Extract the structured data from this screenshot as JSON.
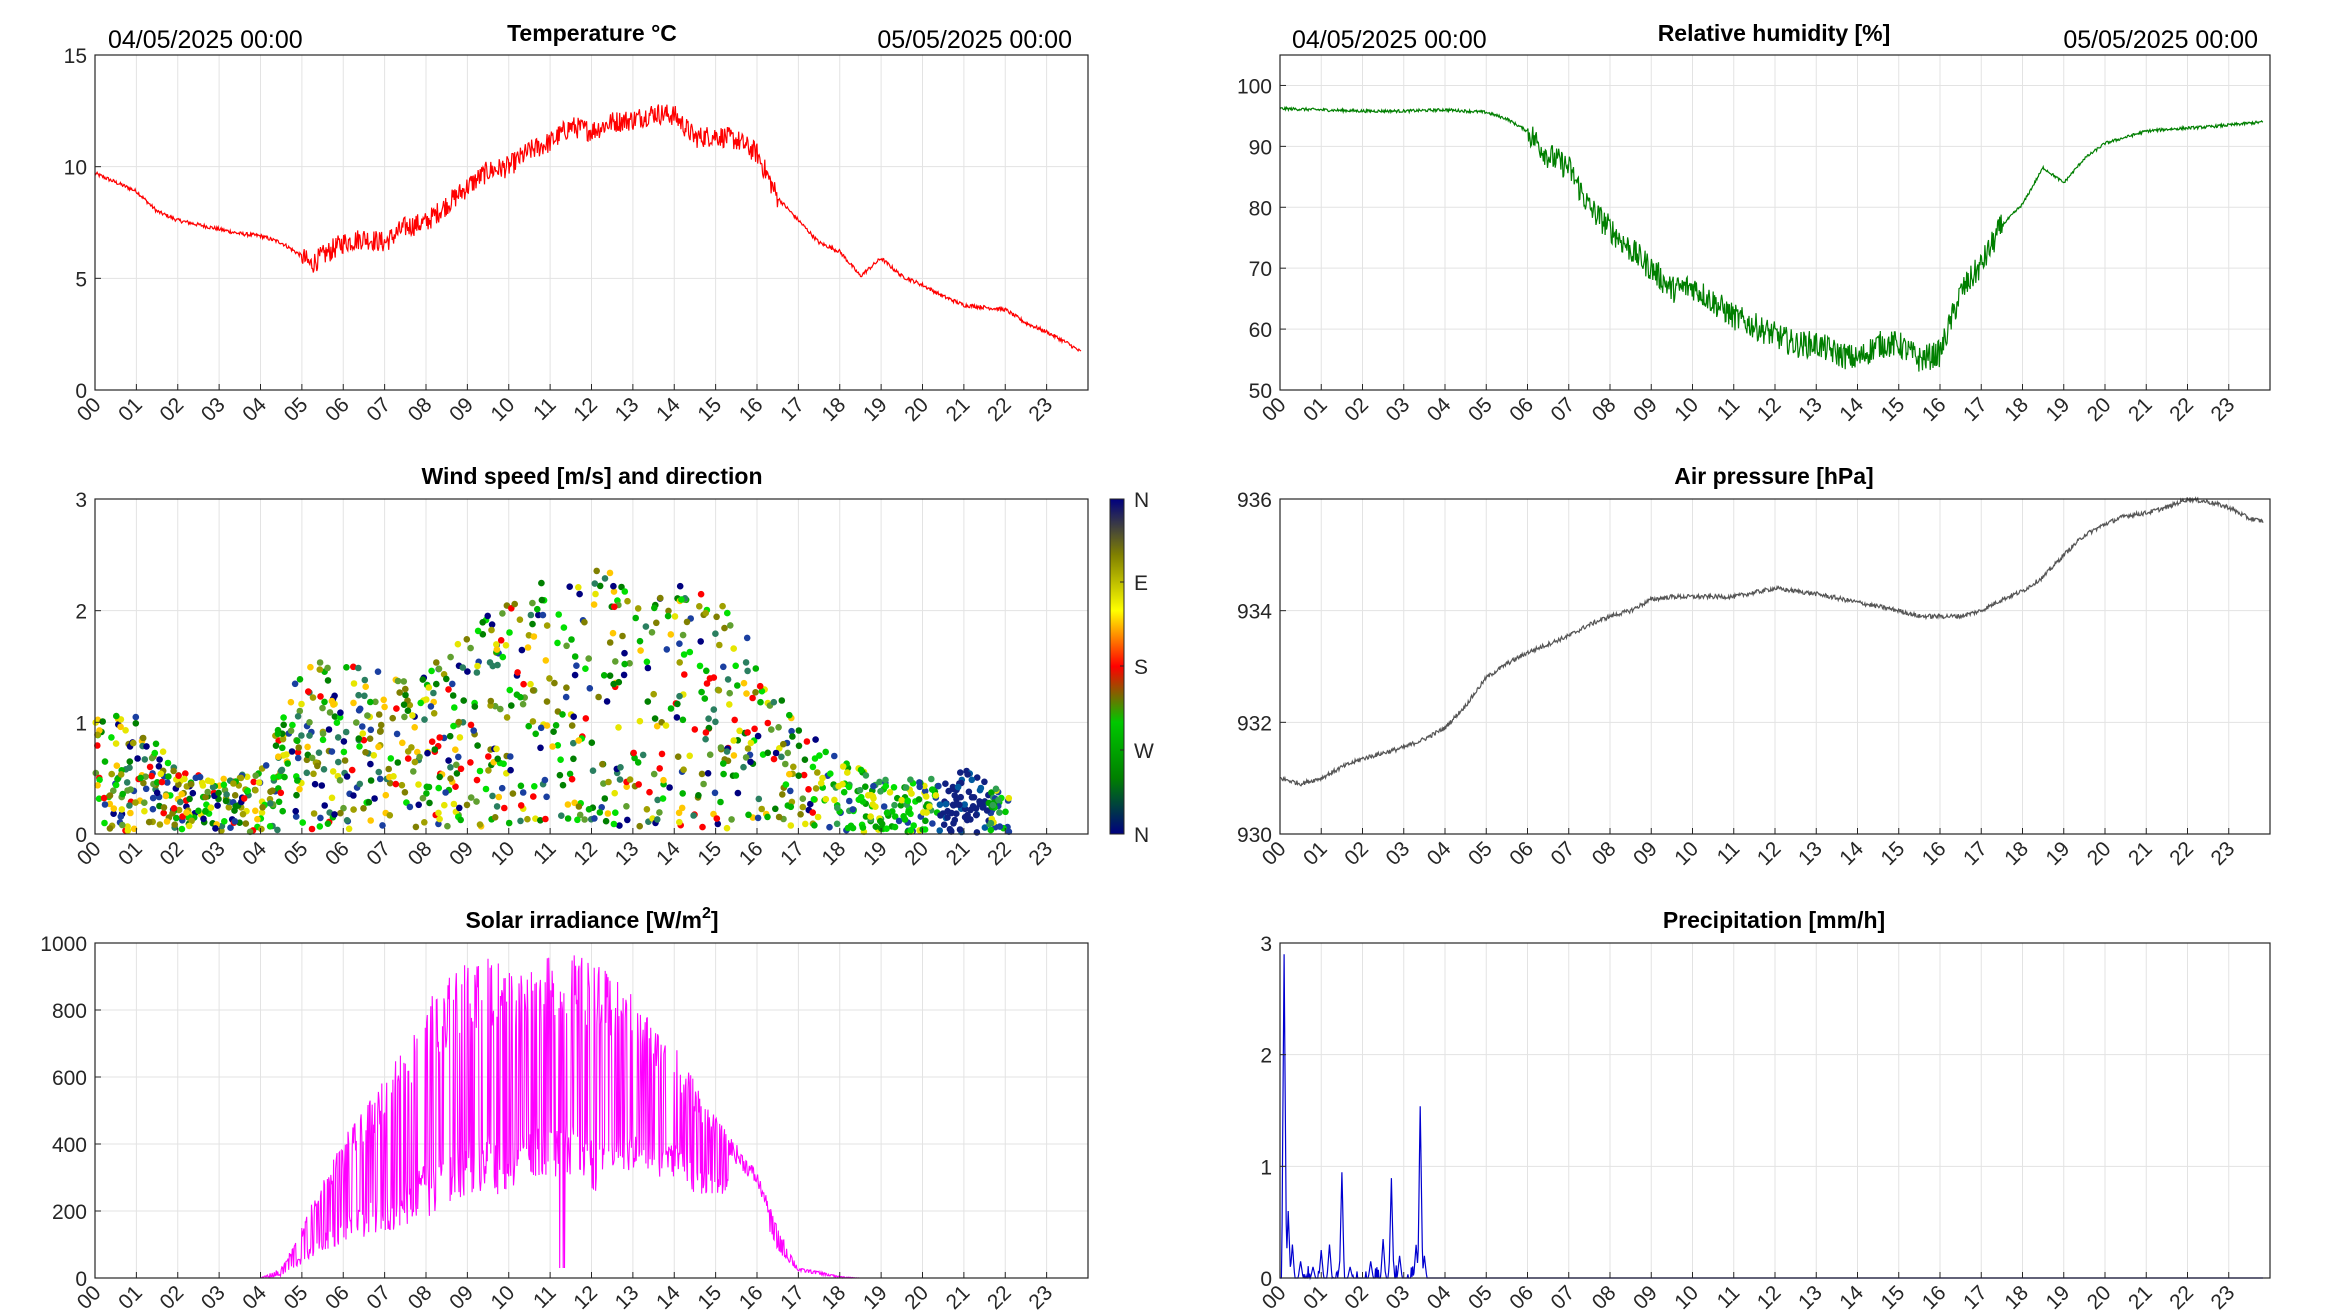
{
  "date_start": "04/05/2025 00:00",
  "date_end": "05/05/2025 00:00",
  "hour_labels": [
    "00",
    "01",
    "02",
    "03",
    "04",
    "05",
    "06",
    "07",
    "08",
    "09",
    "10",
    "11",
    "12",
    "13",
    "14",
    "15",
    "16",
    "17",
    "18",
    "19",
    "20",
    "21",
    "22",
    "23"
  ],
  "chart_data": [
    {
      "id": "temperature",
      "type": "line",
      "title": "Temperature °C",
      "color": "#ff0000",
      "xlabel": "",
      "ylabel": "",
      "xlim": [
        0,
        23.83
      ],
      "ylim": [
        0,
        15
      ],
      "yticks": [
        0,
        5,
        10,
        15
      ],
      "grid": true,
      "x": [
        0,
        0.5,
        1,
        1.5,
        2,
        2.5,
        3,
        3.5,
        4,
        4.5,
        5,
        5.2,
        5.5,
        6,
        6.5,
        7,
        7.5,
        8,
        8.5,
        9,
        9.5,
        10,
        10.5,
        11,
        11.5,
        12,
        12.5,
        13,
        13.5,
        14,
        14.5,
        15,
        15.5,
        16,
        16.5,
        17,
        17.5,
        18,
        18.5,
        19,
        19.5,
        20,
        20.5,
        21,
        21.5,
        22,
        22.5,
        23,
        23.5,
        23.83
      ],
      "y": [
        9.7,
        9.3,
        8.9,
        8.0,
        7.6,
        7.4,
        7.2,
        7.0,
        6.9,
        6.6,
        6.0,
        5.6,
        6.0,
        6.6,
        6.8,
        6.6,
        7.3,
        7.5,
        8.3,
        9.1,
        9.8,
        10.0,
        10.7,
        11.1,
        11.8,
        11.6,
        12.0,
        12.1,
        12.4,
        12.3,
        11.3,
        11.4,
        11.2,
        10.6,
        8.6,
        7.6,
        6.6,
        6.2,
        5.1,
        5.9,
        5.1,
        4.7,
        4.2,
        3.8,
        3.7,
        3.6,
        3.0,
        2.6,
        2.1,
        1.7
      ],
      "noise": 0.35
    },
    {
      "id": "humidity",
      "type": "line",
      "title": "Relative humidity [%]",
      "color": "#007f00",
      "xlabel": "",
      "ylabel": "",
      "xlim": [
        0,
        23.83
      ],
      "ylim": [
        50,
        105
      ],
      "yticks": [
        50,
        60,
        70,
        80,
        90,
        100
      ],
      "grid": true,
      "x": [
        0,
        1,
        2,
        3,
        4,
        5,
        5.5,
        6,
        6.5,
        7,
        7.5,
        8,
        8.5,
        9,
        9.5,
        10,
        10.5,
        11,
        11.5,
        12,
        12.5,
        13,
        13.5,
        14,
        14.5,
        15,
        15.5,
        16,
        16.5,
        17,
        17.5,
        18,
        18.5,
        19,
        19.5,
        20,
        20.5,
        21,
        21.5,
        22,
        22.5,
        23,
        23.83
      ],
      "y": [
        96.2,
        96.0,
        95.8,
        95.8,
        96.0,
        95.6,
        94.5,
        92.5,
        88.5,
        86.5,
        80.0,
        76.5,
        73.0,
        70.0,
        66.5,
        67.0,
        64.5,
        62.0,
        60.5,
        59.0,
        57.5,
        57.5,
        56.0,
        55.0,
        57.5,
        57.5,
        55.0,
        56.0,
        66.0,
        70.5,
        77.0,
        80.5,
        86.5,
        84.0,
        88.0,
        90.5,
        91.5,
        92.5,
        92.8,
        93.0,
        93.2,
        93.5,
        94.0
      ],
      "noise": 1.6
    },
    {
      "id": "wind",
      "type": "scatter",
      "title": "Wind speed [m/s] and direction",
      "xlabel": "",
      "ylabel": "",
      "xlim": [
        0,
        24
      ],
      "ylim": [
        0,
        3
      ],
      "yticks": [
        0,
        1,
        2,
        3
      ],
      "grid": true,
      "colorbar": {
        "labels": [
          "N",
          "W",
          "S",
          "E",
          "N"
        ],
        "colors": [
          "#00007f",
          "#008000",
          "#00c800",
          "#ff0000",
          "#ffff00",
          "#808000",
          "#00007f"
        ]
      },
      "speed_envelope_x": [
        0,
        1,
        2,
        3,
        4,
        5,
        6,
        7,
        8,
        9,
        10,
        11,
        12,
        13,
        14,
        15,
        16,
        17,
        18,
        19,
        20,
        21,
        22
      ],
      "speed_envelope_mean": [
        0.55,
        0.55,
        0.3,
        0.25,
        0.3,
        0.8,
        0.8,
        0.75,
        0.75,
        0.95,
        1.1,
        1.2,
        1.25,
        1.15,
        1.15,
        1.1,
        0.85,
        0.5,
        0.35,
        0.25,
        0.25,
        0.3,
        0.2
      ],
      "direction_by_period": [
        {
          "from": 0,
          "to": 17.5,
          "mode": "mixed"
        },
        {
          "from": 17.5,
          "to": 20.4,
          "mode": "green"
        },
        {
          "from": 20.4,
          "to": 21.6,
          "mode": "navy"
        },
        {
          "from": 21.6,
          "to": 22.2,
          "mode": "green"
        }
      ]
    },
    {
      "id": "pressure",
      "type": "line",
      "title": "Air pressure [hPa]",
      "color": "#555555",
      "xlabel": "",
      "ylabel": "",
      "xlim": [
        0,
        23.83
      ],
      "ylim": [
        930,
        936
      ],
      "yticks": [
        930,
        932,
        934,
        936
      ],
      "grid": true,
      "x": [
        0,
        0.5,
        1,
        1.5,
        2,
        2.5,
        3,
        3.5,
        4,
        4.5,
        5,
        5.5,
        6,
        6.5,
        7,
        7.5,
        8,
        8.5,
        9,
        9.5,
        10,
        11,
        12,
        12.5,
        13,
        14,
        15,
        15.5,
        16,
        16.5,
        17,
        17.5,
        18,
        18.5,
        19,
        19.5,
        20,
        20.5,
        21,
        21.5,
        22,
        22.5,
        23,
        23.5,
        23.83
      ],
      "y": [
        931.0,
        930.9,
        931.0,
        931.2,
        931.35,
        931.45,
        931.55,
        931.7,
        931.9,
        932.3,
        932.8,
        933.05,
        933.25,
        933.4,
        933.55,
        933.75,
        933.9,
        934.0,
        934.2,
        934.25,
        934.25,
        934.25,
        934.4,
        934.35,
        934.3,
        934.15,
        934.0,
        933.9,
        933.9,
        933.9,
        934.0,
        934.2,
        934.35,
        934.6,
        935.0,
        935.35,
        935.55,
        935.7,
        935.75,
        935.85,
        936.0,
        935.95,
        935.85,
        935.65,
        935.6
      ],
      "noise": 0.04
    },
    {
      "id": "solar",
      "type": "line",
      "title": "Solar irradiance [W/m",
      "title_sup": "2",
      "title_end": "]",
      "color": "#ff00ff",
      "xlabel": "",
      "ylabel": "",
      "xlim": [
        0,
        23.83
      ],
      "ylim": [
        0,
        1000
      ],
      "yticks": [
        0,
        200,
        400,
        600,
        800,
        1000
      ],
      "grid": true,
      "envelope_x": [
        0,
        4,
        4.5,
        5,
        5.5,
        6,
        6.5,
        7,
        7.5,
        8,
        8.5,
        9,
        9.5,
        10,
        10.5,
        11,
        11.5,
        12,
        12.5,
        13,
        13.5,
        14,
        14.5,
        15,
        15.5,
        16,
        16.5,
        17,
        17.5,
        18,
        18.5,
        23.83
      ],
      "envelope_y": [
        0,
        0,
        30,
        150,
        300,
        420,
        500,
        600,
        700,
        820,
        900,
        950,
        960,
        940,
        950,
        960,
        970,
        960,
        900,
        850,
        770,
        700,
        600,
        480,
        400,
        320,
        150,
        30,
        20,
        5,
        0,
        0
      ],
      "baseline_y": [
        0,
        0,
        5,
        40,
        80,
        100,
        120,
        140,
        150,
        180,
        200,
        250,
        250,
        250,
        300,
        300,
        300,
        250,
        300,
        300,
        300,
        300,
        250,
        250,
        250,
        200,
        80,
        20,
        10,
        0,
        0,
        0
      ]
    },
    {
      "id": "precip",
      "type": "line",
      "title": "Precipitation [mm/h]",
      "color": "#0000d0",
      "xlabel": "",
      "ylabel": "",
      "xlim": [
        0,
        23.83
      ],
      "ylim": [
        0,
        3
      ],
      "yticks": [
        0,
        1,
        2,
        3
      ],
      "grid": true,
      "spikes": [
        [
          0.1,
          2.9
        ],
        [
          0.2,
          0.6
        ],
        [
          0.3,
          0.3
        ],
        [
          0.5,
          0.15
        ],
        [
          0.8,
          0.1
        ],
        [
          1.0,
          0.25
        ],
        [
          1.2,
          0.3
        ],
        [
          1.5,
          0.95
        ],
        [
          1.7,
          0.1
        ],
        [
          2.2,
          0.15
        ],
        [
          2.5,
          0.35
        ],
        [
          2.7,
          0.9
        ],
        [
          2.9,
          0.2
        ],
        [
          3.3,
          0.3
        ],
        [
          3.4,
          1.55
        ],
        [
          3.5,
          0.2
        ]
      ]
    }
  ]
}
